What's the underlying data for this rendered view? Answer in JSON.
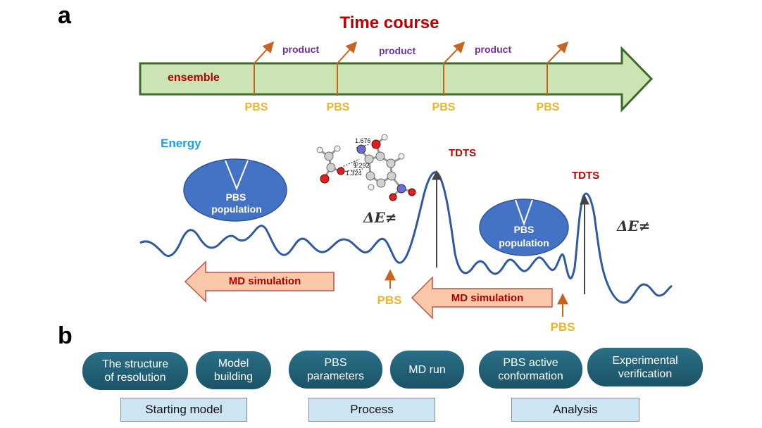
{
  "panel_a": {
    "letter": "a",
    "title": "Time course",
    "ensemble_label": "ensemble",
    "product_labels": [
      "product",
      "product",
      "product"
    ],
    "pbs_timeline_labels": [
      "PBS",
      "PBS",
      "PBS",
      "PBS"
    ],
    "energy_label": "Energy",
    "population_left": {
      "line1": "PBS",
      "line2": "population"
    },
    "population_right": {
      "line1": "PBS",
      "line2": "population"
    },
    "tdts_labels": [
      "TDTS",
      "TDTS"
    ],
    "delta_e_labels": [
      "ΔE≠",
      "ΔE≠"
    ],
    "md_simulation_labels": [
      "MD simulation",
      "MD simulation"
    ],
    "pbs_energy_labels": [
      "PBS",
      "PBS"
    ],
    "bond_lengths": [
      "1.676",
      "1.292",
      "1.324"
    ]
  },
  "panel_b": {
    "letter": "b",
    "steps": [
      {
        "label": "The structure\nof resolution"
      },
      {
        "label": "Model\nbuilding"
      },
      {
        "label": "PBS\nparameters"
      },
      {
        "label": "MD run"
      },
      {
        "label": "PBS active\nconformation"
      },
      {
        "label": "Experimental\nverification"
      }
    ],
    "groups": [
      "Starting model",
      "Process",
      "Analysis"
    ]
  },
  "colors": {
    "title_red": "#c00000",
    "product_purple": "#7030a0",
    "pbs_gold": "#f0b42a",
    "energy_blue": "#20a0e0",
    "curve_blue": "#2e5aa0",
    "arrow_green": "#cce4b4",
    "md_arrow_fill": "#f8c8a8",
    "population_fill": "#4472c4",
    "pill_teal": "#1f5f76",
    "box_fill": "#cde4f2"
  }
}
